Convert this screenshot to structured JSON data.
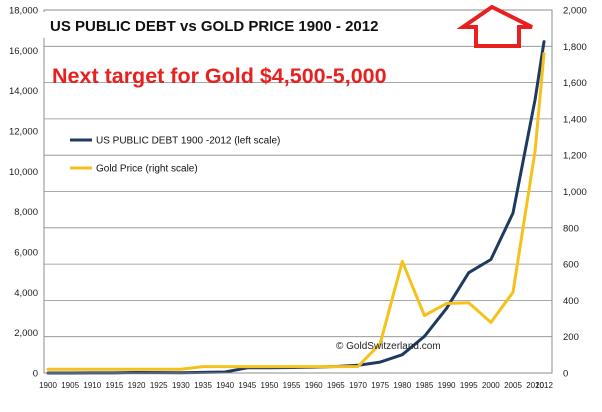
{
  "chart_data": {
    "type": "line",
    "title": "US PUBLIC DEBT vs GOLD PRICE 1900 - 2012",
    "headline": "Next target for Gold $4,500-5,000",
    "watermark": "© GoldSwitzerland.com",
    "grid": true,
    "legend_position": "top-left",
    "x": [
      1900,
      1905,
      1910,
      1915,
      1920,
      1925,
      1930,
      1935,
      1940,
      1945,
      1950,
      1955,
      1960,
      1965,
      1970,
      1975,
      1980,
      1985,
      1990,
      1995,
      2000,
      2005,
      2010,
      2012
    ],
    "x_tick_labels": [
      "1900",
      "1905",
      "1910",
      "1915",
      "1920",
      "1925",
      "1930",
      "1935",
      "1940",
      "1945",
      "1950",
      "1955",
      "1960",
      "1965",
      "1970",
      "1975",
      "1980",
      "1985",
      "1990",
      "1995",
      "2000",
      "2005",
      "2010",
      "2012"
    ],
    "y_left": {
      "min": 0,
      "max": 18000,
      "step": 2000,
      "tick_labels": [
        "0",
        "2,000",
        "4,000",
        "6,000",
        "8,000",
        "10,000",
        "12,000",
        "14,000",
        "16,000",
        "18,000"
      ]
    },
    "y_right": {
      "min": 0,
      "max": 2000,
      "step": 200,
      "tick_labels": [
        "0",
        "200",
        "400",
        "600",
        "800",
        "1,000",
        "1,200",
        "1,400",
        "1,600",
        "1,800",
        "2,000"
      ]
    },
    "series": [
      {
        "name": "US PUBLIC DEBT 1900 -2012 (left scale)",
        "axis": "left",
        "color": "#1f3a60",
        "values": [
          2,
          2,
          3,
          3,
          26,
          21,
          16,
          29,
          51,
          260,
          257,
          274,
          291,
          322,
          381,
          542,
          909,
          1817,
          3206,
          4974,
          5629,
          7933,
          13562,
          16433
        ]
      },
      {
        "name": "Gold Price (right scale)",
        "axis": "right",
        "color": "#f5c21b",
        "values": [
          20.67,
          20.67,
          20.67,
          20.67,
          20.67,
          20.67,
          20.67,
          35,
          35,
          35,
          35,
          35,
          35,
          35,
          36,
          161,
          615,
          317,
          383,
          387,
          279,
          445,
          1225,
          1760
        ]
      }
    ]
  },
  "arrow_icon": "up-arrow-outline-icon",
  "colors": {
    "headline": "#e8201f",
    "arrow": "#e8201f",
    "grid": "#8c8c8c"
  }
}
